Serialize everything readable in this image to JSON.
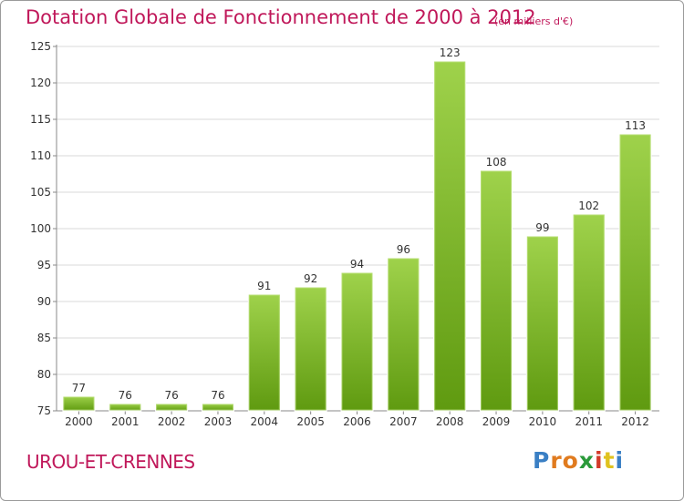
{
  "title": "Dotation Globale de Fonctionnement de 2000 à 2012",
  "subtitle": "(en milliers d'€)",
  "commune": "UROU-ET-CRENNES",
  "logo": {
    "text": "Proxiti",
    "colors": [
      "#3a7fc4",
      "#e07b1f",
      "#e07b1f",
      "#2a9a3a",
      "#d33a2a",
      "#e0c21f",
      "#3a7fc4"
    ]
  },
  "colors": {
    "bar_top": "#9fd24b",
    "bar_bottom": "#5f9a10",
    "title": "#c0185a",
    "grid": "#d8d8d8"
  },
  "chart_data": {
    "type": "bar",
    "title": "Dotation Globale de Fonctionnement de 2000 à 2012",
    "subtitle": "(en milliers d'€)",
    "categories": [
      "2000",
      "2001",
      "2002",
      "2003",
      "2004",
      "2005",
      "2006",
      "2007",
      "2008",
      "2009",
      "2010",
      "2011",
      "2012"
    ],
    "values": [
      77,
      76,
      76,
      76,
      91,
      92,
      94,
      96,
      123,
      108,
      99,
      102,
      113
    ],
    "ylim": [
      75,
      125
    ],
    "yticks": [
      75,
      80,
      85,
      90,
      95,
      100,
      105,
      110,
      115,
      120,
      125
    ],
    "grid": true
  }
}
